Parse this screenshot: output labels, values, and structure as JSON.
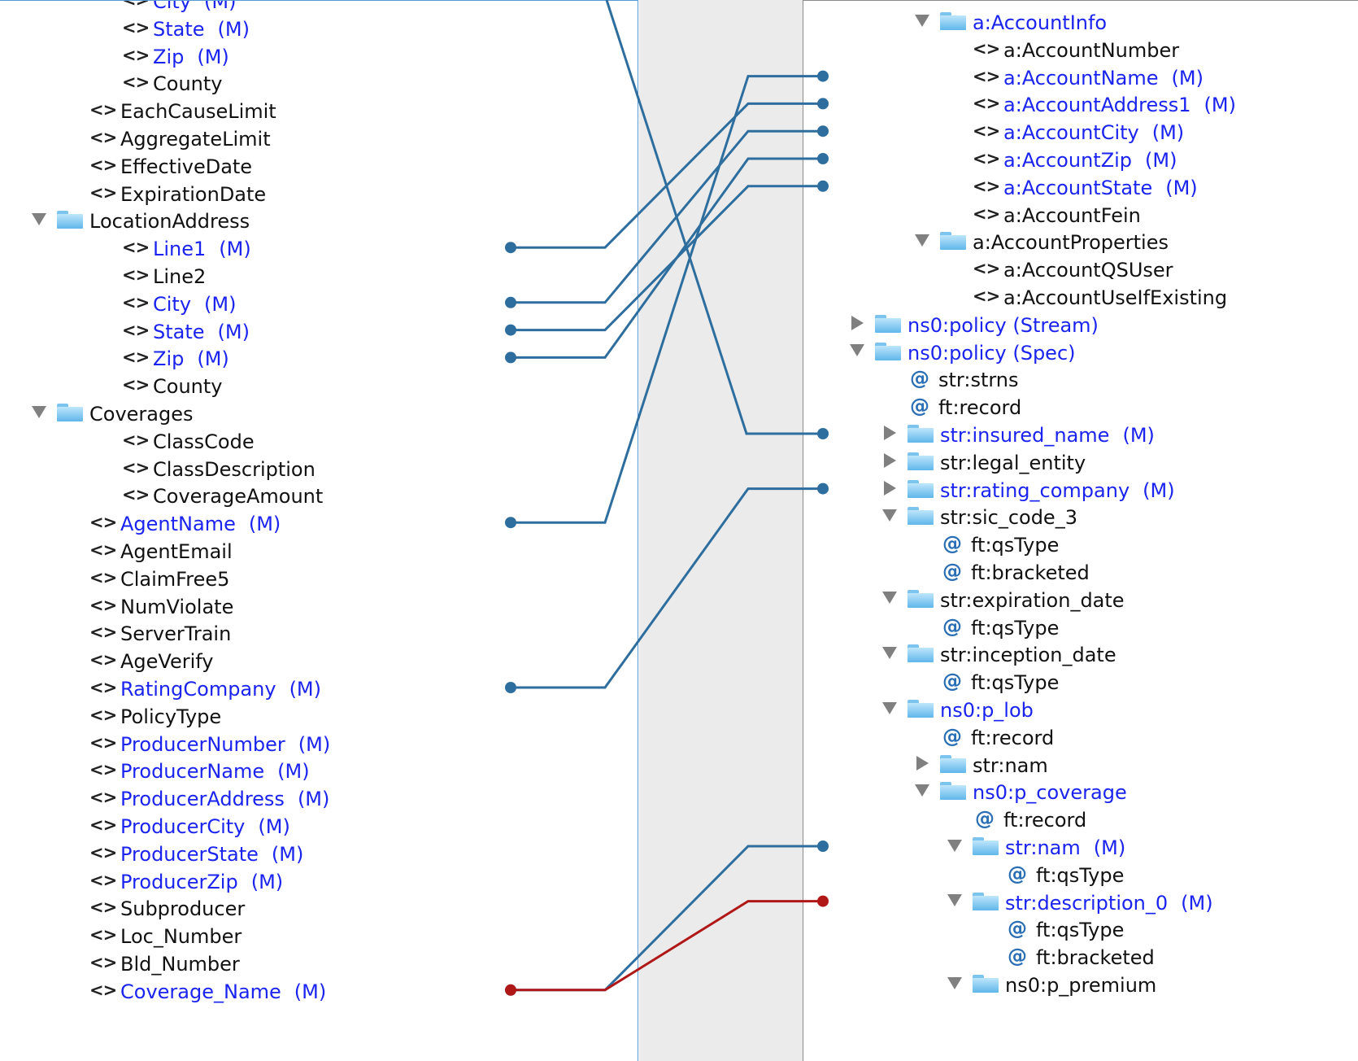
{
  "source_tree": {
    "rows": [
      {
        "label": "City",
        "suffix": "(M)",
        "mandatory": true,
        "kind": "element"
      },
      {
        "label": "State",
        "suffix": "(M)",
        "mandatory": true,
        "kind": "element"
      },
      {
        "label": "Zip",
        "suffix": "(M)",
        "mandatory": true,
        "kind": "element"
      },
      {
        "label": "County",
        "suffix": "",
        "mandatory": false,
        "kind": "element"
      },
      {
        "label": "EachCauseLimit",
        "suffix": "",
        "mandatory": false,
        "kind": "element"
      },
      {
        "label": "AggregateLimit",
        "suffix": "",
        "mandatory": false,
        "kind": "element"
      },
      {
        "label": "EffectiveDate",
        "suffix": "",
        "mandatory": false,
        "kind": "element"
      },
      {
        "label": "ExpirationDate",
        "suffix": "",
        "mandatory": false,
        "kind": "element"
      },
      {
        "label": "LocationAddress",
        "suffix": "",
        "mandatory": false,
        "kind": "folder",
        "toggle": "open"
      },
      {
        "label": "Line1",
        "suffix": "(M)",
        "mandatory": true,
        "kind": "element"
      },
      {
        "label": "Line2",
        "suffix": "",
        "mandatory": false,
        "kind": "element"
      },
      {
        "label": "City",
        "suffix": "(M)",
        "mandatory": true,
        "kind": "element"
      },
      {
        "label": "State",
        "suffix": "(M)",
        "mandatory": true,
        "kind": "element"
      },
      {
        "label": "Zip",
        "suffix": "(M)",
        "mandatory": true,
        "kind": "element"
      },
      {
        "label": "County",
        "suffix": "",
        "mandatory": false,
        "kind": "element"
      },
      {
        "label": "Coverages",
        "suffix": "",
        "mandatory": false,
        "kind": "folder",
        "toggle": "open"
      },
      {
        "label": "ClassCode",
        "suffix": "",
        "mandatory": false,
        "kind": "element"
      },
      {
        "label": "ClassDescription",
        "suffix": "",
        "mandatory": false,
        "kind": "element"
      },
      {
        "label": "CoverageAmount",
        "suffix": "",
        "mandatory": false,
        "kind": "element"
      },
      {
        "label": "AgentName",
        "suffix": "(M)",
        "mandatory": true,
        "kind": "element"
      },
      {
        "label": "AgentEmail",
        "suffix": "",
        "mandatory": false,
        "kind": "element"
      },
      {
        "label": "ClaimFree5",
        "suffix": "",
        "mandatory": false,
        "kind": "element"
      },
      {
        "label": "NumViolate",
        "suffix": "",
        "mandatory": false,
        "kind": "element"
      },
      {
        "label": "ServerTrain",
        "suffix": "",
        "mandatory": false,
        "kind": "element"
      },
      {
        "label": "AgeVerify",
        "suffix": "",
        "mandatory": false,
        "kind": "element"
      },
      {
        "label": "RatingCompany",
        "suffix": "(M)",
        "mandatory": true,
        "kind": "element"
      },
      {
        "label": "PolicyType",
        "suffix": "",
        "mandatory": false,
        "kind": "element"
      },
      {
        "label": "ProducerNumber",
        "suffix": "(M)",
        "mandatory": true,
        "kind": "element"
      },
      {
        "label": "ProducerName",
        "suffix": "(M)",
        "mandatory": true,
        "kind": "element"
      },
      {
        "label": "ProducerAddress",
        "suffix": "(M)",
        "mandatory": true,
        "kind": "element"
      },
      {
        "label": "ProducerCity",
        "suffix": "(M)",
        "mandatory": true,
        "kind": "element"
      },
      {
        "label": "ProducerState",
        "suffix": "(M)",
        "mandatory": true,
        "kind": "element"
      },
      {
        "label": "ProducerZip",
        "suffix": "(M)",
        "mandatory": true,
        "kind": "element"
      },
      {
        "label": "Subproducer",
        "suffix": "",
        "mandatory": false,
        "kind": "element"
      },
      {
        "label": "Loc_Number",
        "suffix": "",
        "mandatory": false,
        "kind": "element"
      },
      {
        "label": "Bld_Number",
        "suffix": "",
        "mandatory": false,
        "kind": "element"
      },
      {
        "label": "Coverage_Name",
        "suffix": "(M)",
        "mandatory": true,
        "kind": "element"
      }
    ]
  },
  "target_tree": {
    "rows": [
      {
        "label": "a:AccountInfo",
        "suffix": "",
        "mandatory": true,
        "kind": "folder",
        "toggle": "open"
      },
      {
        "label": "a:AccountNumber",
        "suffix": "",
        "mandatory": false,
        "kind": "element"
      },
      {
        "label": "a:AccountName",
        "suffix": "(M)",
        "mandatory": true,
        "kind": "element"
      },
      {
        "label": "a:AccountAddress1",
        "suffix": "(M)",
        "mandatory": true,
        "kind": "element"
      },
      {
        "label": "a:AccountCity",
        "suffix": "(M)",
        "mandatory": true,
        "kind": "element"
      },
      {
        "label": "a:AccountZip",
        "suffix": "(M)",
        "mandatory": true,
        "kind": "element"
      },
      {
        "label": "a:AccountState",
        "suffix": "(M)",
        "mandatory": true,
        "kind": "element"
      },
      {
        "label": "a:AccountFein",
        "suffix": "",
        "mandatory": false,
        "kind": "element"
      },
      {
        "label": "a:AccountProperties",
        "suffix": "",
        "mandatory": false,
        "kind": "folder",
        "toggle": "open"
      },
      {
        "label": "a:AccountQSUser",
        "suffix": "",
        "mandatory": false,
        "kind": "element"
      },
      {
        "label": "a:AccountUseIfExisting",
        "suffix": "",
        "mandatory": false,
        "kind": "element"
      },
      {
        "label": "ns0:policy (Stream)",
        "suffix": "",
        "mandatory": true,
        "kind": "folder",
        "toggle": "closed"
      },
      {
        "label": "ns0:policy (Spec)",
        "suffix": "",
        "mandatory": true,
        "kind": "folder",
        "toggle": "open"
      },
      {
        "label": "str:strns",
        "suffix": "",
        "mandatory": false,
        "kind": "attribute"
      },
      {
        "label": "ft:record",
        "suffix": "",
        "mandatory": false,
        "kind": "attribute"
      },
      {
        "label": "str:insured_name",
        "suffix": "(M)",
        "mandatory": true,
        "kind": "folder",
        "toggle": "closed"
      },
      {
        "label": "str:legal_entity",
        "suffix": "",
        "mandatory": false,
        "kind": "folder",
        "toggle": "closed"
      },
      {
        "label": "str:rating_company",
        "suffix": "(M)",
        "mandatory": true,
        "kind": "folder",
        "toggle": "closed"
      },
      {
        "label": "str:sic_code_3",
        "suffix": "",
        "mandatory": false,
        "kind": "folder",
        "toggle": "open"
      },
      {
        "label": "ft:qsType",
        "suffix": "",
        "mandatory": false,
        "kind": "attribute"
      },
      {
        "label": "ft:bracketed",
        "suffix": "",
        "mandatory": false,
        "kind": "attribute"
      },
      {
        "label": "str:expiration_date",
        "suffix": "",
        "mandatory": false,
        "kind": "folder",
        "toggle": "open"
      },
      {
        "label": "ft:qsType",
        "suffix": "",
        "mandatory": false,
        "kind": "attribute"
      },
      {
        "label": "str:inception_date",
        "suffix": "",
        "mandatory": false,
        "kind": "folder",
        "toggle": "open"
      },
      {
        "label": "ft:qsType",
        "suffix": "",
        "mandatory": false,
        "kind": "attribute"
      },
      {
        "label": "ns0:p_lob",
        "suffix": "",
        "mandatory": true,
        "kind": "folder",
        "toggle": "open"
      },
      {
        "label": "ft:record",
        "suffix": "",
        "mandatory": false,
        "kind": "attribute"
      },
      {
        "label": "str:nam",
        "suffix": "",
        "mandatory": false,
        "kind": "folder",
        "toggle": "closed"
      },
      {
        "label": "ns0:p_coverage",
        "suffix": "",
        "mandatory": true,
        "kind": "folder",
        "toggle": "open"
      },
      {
        "label": "ft:record",
        "suffix": "",
        "mandatory": false,
        "kind": "attribute"
      },
      {
        "label": "str:nam",
        "suffix": "(M)",
        "mandatory": true,
        "kind": "folder",
        "toggle": "open"
      },
      {
        "label": "ft:qsType",
        "suffix": "",
        "mandatory": false,
        "kind": "attribute"
      },
      {
        "label": "str:description_0",
        "suffix": "(M)",
        "mandatory": true,
        "kind": "folder",
        "toggle": "open"
      },
      {
        "label": "ft:qsType",
        "suffix": "",
        "mandatory": false,
        "kind": "attribute"
      },
      {
        "label": "ft:bracketed",
        "suffix": "",
        "mandatory": false,
        "kind": "attribute"
      },
      {
        "label": "ns0:p_premium",
        "suffix": "",
        "mandatory": false,
        "kind": "folder",
        "toggle": "open"
      }
    ]
  },
  "mappings": [
    {
      "from": "Line1",
      "to": "a:AccountAddress1",
      "color": "#2e6e9e"
    },
    {
      "from": "City",
      "to": "a:AccountCity",
      "color": "#2e6e9e"
    },
    {
      "from": "State",
      "to": "a:AccountState",
      "color": "#2e6e9e"
    },
    {
      "from": "Zip",
      "to": "a:AccountZip",
      "color": "#2e6e9e"
    },
    {
      "from": "AgentName",
      "to": "a:AccountName",
      "color": "#2e6e9e"
    },
    {
      "from": "RatingCompany",
      "to": "str:rating_company",
      "color": "#2e6e9e"
    },
    {
      "from": "Coverage_Name",
      "to": "str:nam",
      "color": "#2e6e9e"
    },
    {
      "from": "Coverage_Name",
      "to": "str:description_0",
      "color": "#b01818"
    },
    {
      "from": "(above view)",
      "to": "str:insured_name",
      "color": "#2e6e9e"
    }
  ],
  "colors": {
    "mandatory_text": "#1a24ee",
    "wire": "#2e6e9e",
    "wire_selected": "#b01818"
  }
}
